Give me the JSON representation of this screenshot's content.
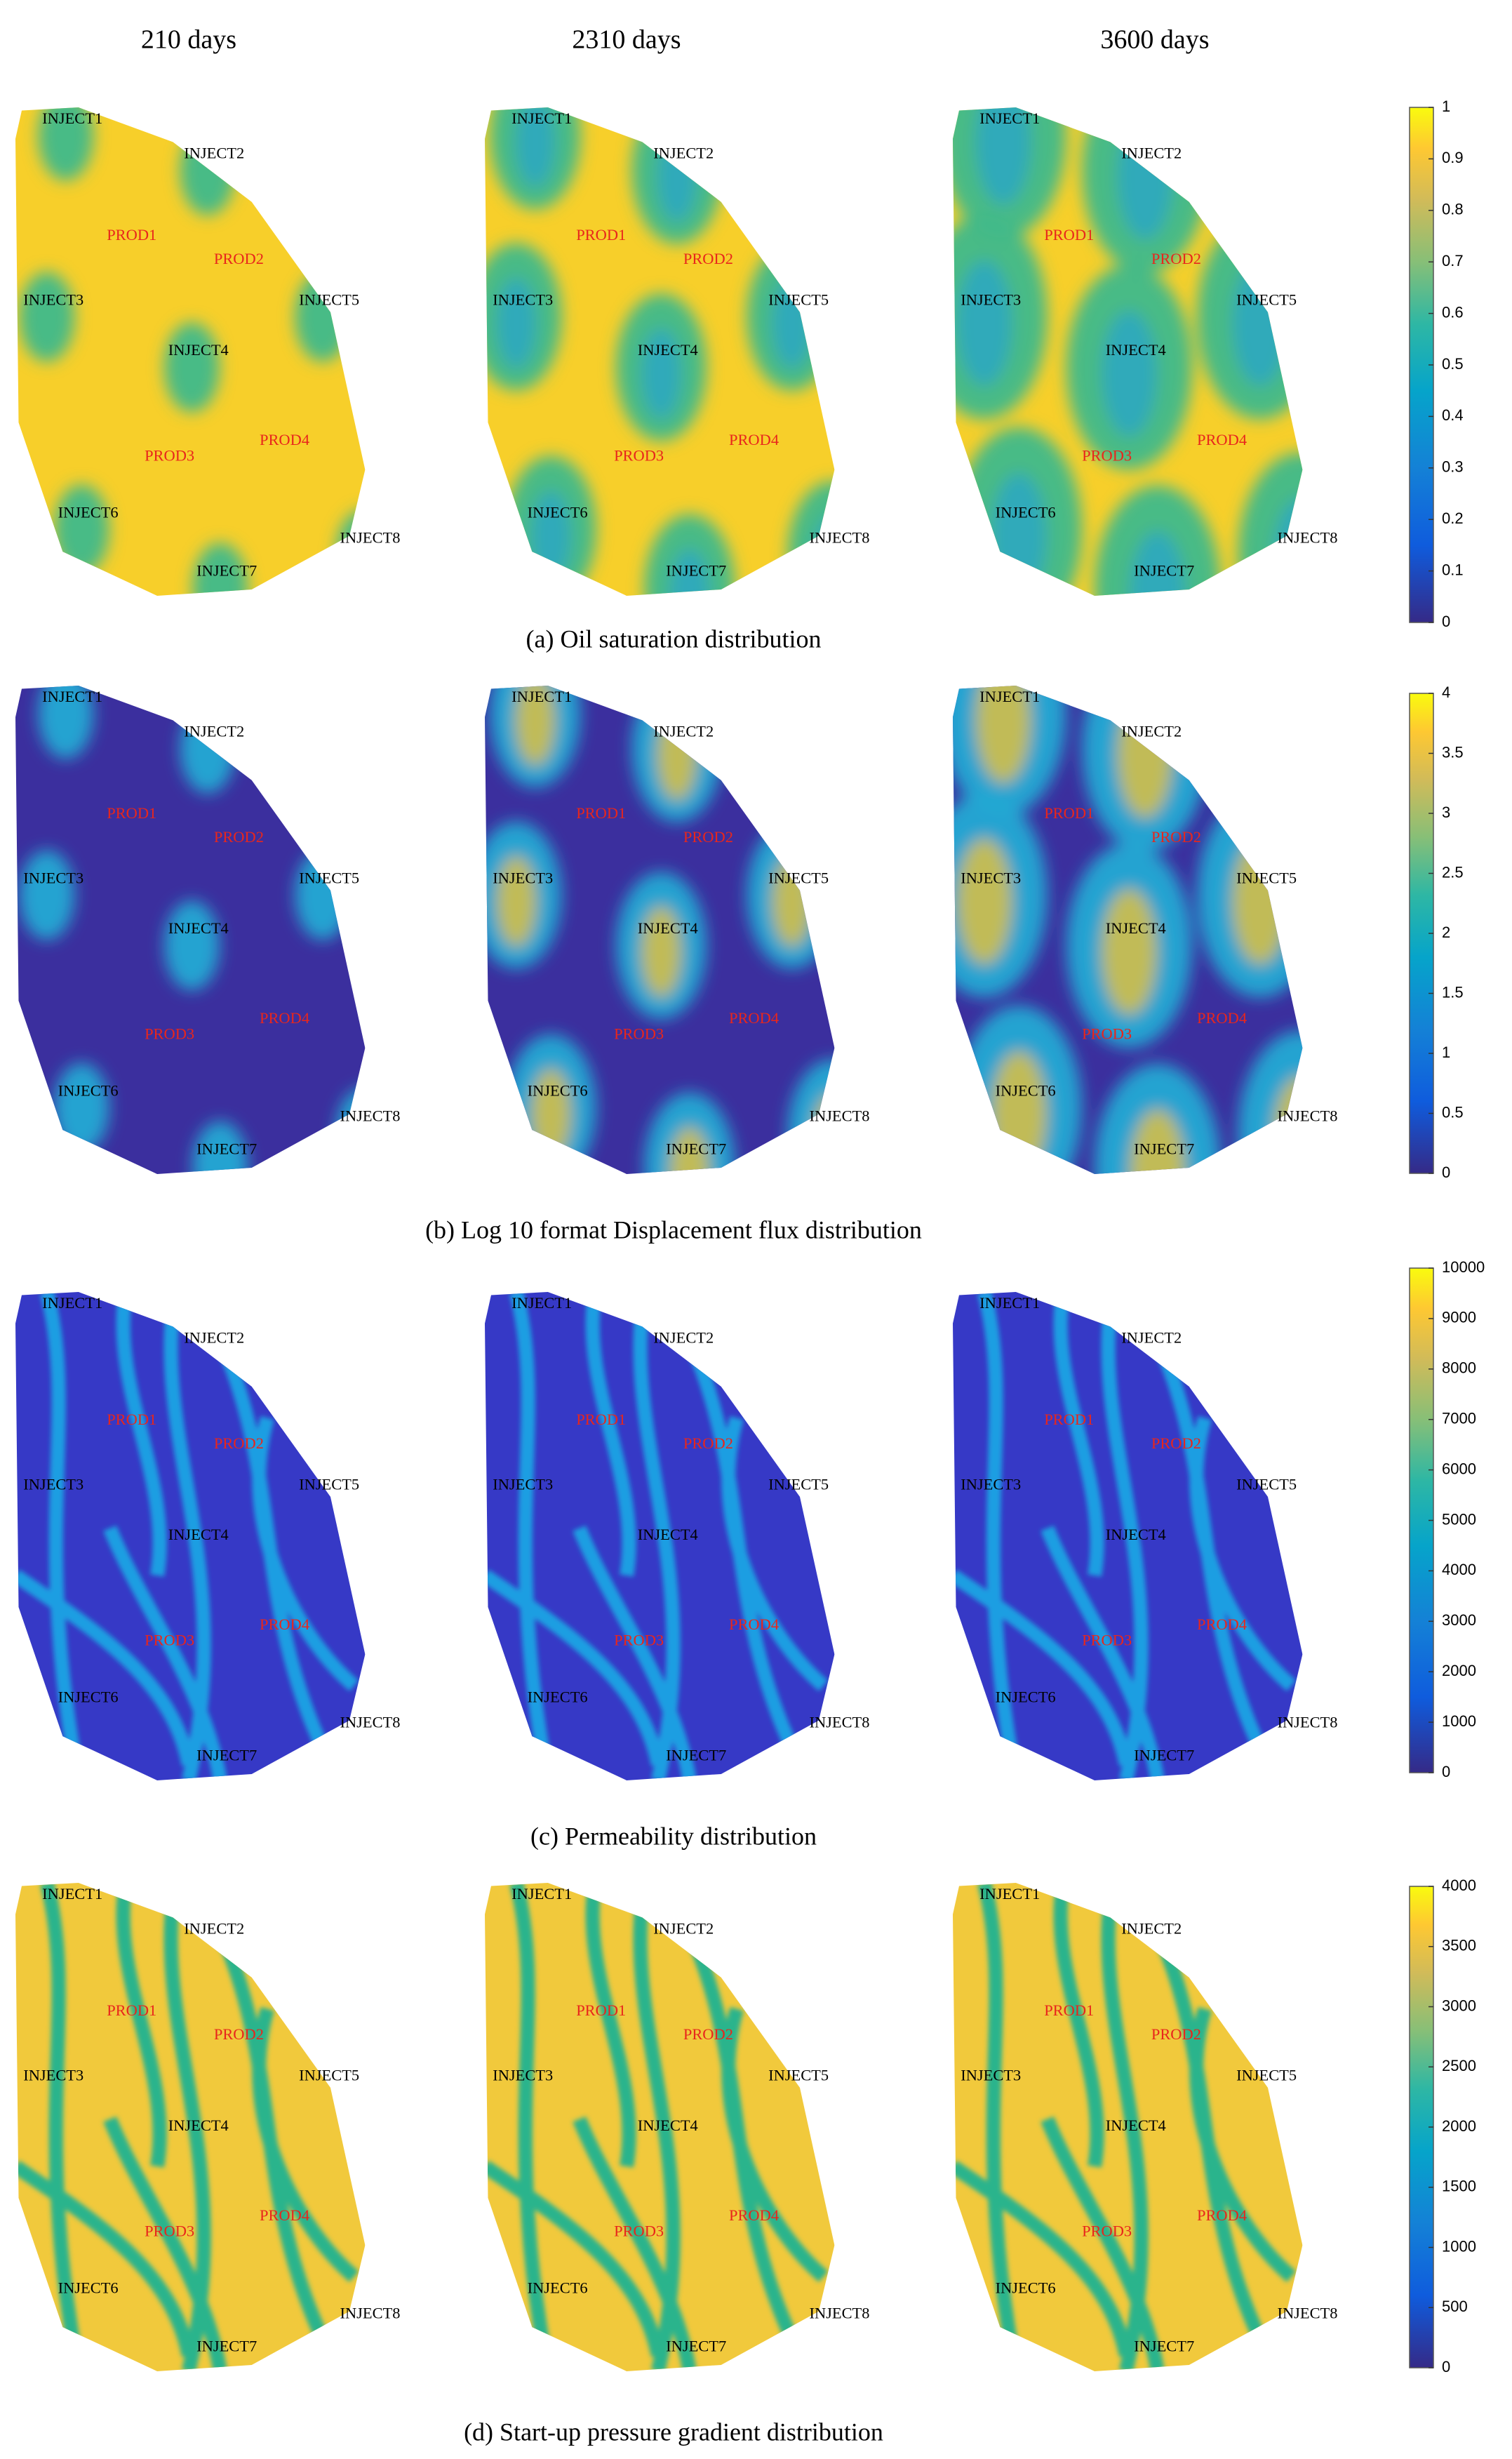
{
  "columns": [
    "210 days",
    "2310 days",
    "3600 days"
  ],
  "wells": [
    {
      "label": "INJECT1",
      "color": "#000000"
    },
    {
      "label": "INJECT2",
      "color": "#000000"
    },
    {
      "label": "PROD1",
      "color": "#e8261c"
    },
    {
      "label": "PROD2",
      "color": "#e8261c"
    },
    {
      "label": "INJECT3",
      "color": "#000000"
    },
    {
      "label": "INJECT5",
      "color": "#000000"
    },
    {
      "label": "INJECT4",
      "color": "#000000"
    },
    {
      "label": "PROD4",
      "color": "#e8261c"
    },
    {
      "label": "PROD3",
      "color": "#e8261c"
    },
    {
      "label": "INJECT6",
      "color": "#000000"
    },
    {
      "label": "INJECT8",
      "color": "#000000"
    },
    {
      "label": "INJECT7",
      "color": "#000000"
    }
  ],
  "panels": [
    {
      "caption": "(a) Oil saturation distribution",
      "colorbar": {
        "lim": [
          0,
          1
        ],
        "ticks": [
          0,
          0.1,
          0.2,
          0.3,
          0.4,
          0.5,
          0.6,
          0.7,
          0.8,
          0.9,
          1
        ]
      }
    },
    {
      "caption": "(b) Log 10 format Displacement flux distribution",
      "colorbar": {
        "lim": [
          0,
          4
        ],
        "ticks": [
          0,
          0.5,
          1,
          1.5,
          2,
          2.5,
          3,
          3.5,
          4
        ]
      }
    },
    {
      "caption": "(c) Permeability distribution",
      "colorbar": {
        "lim": [
          0,
          10000
        ],
        "ticks": [
          0,
          1000,
          2000,
          3000,
          4000,
          5000,
          6000,
          7000,
          8000,
          9000,
          10000
        ]
      }
    },
    {
      "caption": "(d) Start-up pressure gradient distribution",
      "colorbar": {
        "lim": [
          0,
          4000
        ],
        "ticks": [
          0,
          500,
          1000,
          1500,
          2000,
          2500,
          3000,
          3500,
          4000
        ]
      }
    }
  ]
}
